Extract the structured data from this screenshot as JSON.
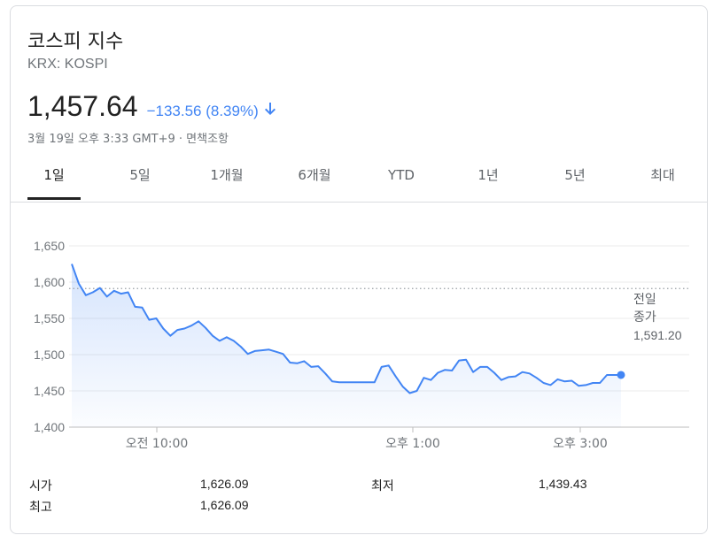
{
  "header": {
    "title": "코스피 지수",
    "subtitle": "KRX: KOSPI",
    "price": "1,457.64",
    "change": "−133.56 (8.39%)",
    "timestamp": "3월 19일 오후 3:33 GMT+9 · 면책조항"
  },
  "tabs": [
    {
      "label": "1일",
      "active": true
    },
    {
      "label": "5일"
    },
    {
      "label": "1개월"
    },
    {
      "label": "6개월"
    },
    {
      "label": "YTD"
    },
    {
      "label": "1년"
    },
    {
      "label": "5년"
    },
    {
      "label": "최대"
    }
  ],
  "colors": {
    "line": "#4285f4",
    "change": "#4285f4",
    "grid": "#ebebeb",
    "axis_text": "#70757a"
  },
  "chart_data": {
    "type": "area",
    "x_tick_labels": [
      "오전 10:00",
      "오후 1:00",
      "오후 3:00"
    ],
    "y_ticks": [
      1400,
      1450,
      1500,
      1550,
      1600,
      1650
    ],
    "y_tick_labels": [
      "1,400",
      "1,450",
      "1,500",
      "1,550",
      "1,600",
      "1,650"
    ],
    "ylim": [
      1400,
      1660
    ],
    "grid": true,
    "previous_close": {
      "label_line1": "전일",
      "label_line2": "종가",
      "value": 1591.2,
      "value_label": "1,591.20"
    },
    "series": [
      {
        "values": [
          1625,
          1598,
          1582,
          1586,
          1592,
          1580,
          1588,
          1584,
          1586,
          1566,
          1565,
          1548,
          1550,
          1536,
          1526,
          1534,
          1536,
          1540,
          1546,
          1537,
          1526,
          1519,
          1524,
          1519,
          1511,
          1501,
          1505,
          1506,
          1507,
          1504,
          1501,
          1489,
          1488,
          1491,
          1483,
          1484,
          1474,
          1463,
          1462,
          1462,
          1462,
          1462,
          1462,
          1462,
          1483,
          1485,
          1470,
          1456,
          1447,
          1450,
          1468,
          1465,
          1475,
          1479,
          1478,
          1492,
          1493,
          1476,
          1483,
          1483,
          1475,
          1465,
          1469,
          1470,
          1476,
          1474,
          1468,
          1461,
          1458,
          1466,
          1463,
          1464,
          1457,
          1458,
          1461,
          1461,
          1472,
          1472,
          1472
        ]
      }
    ]
  },
  "stats": {
    "open_label": "시가",
    "open_value": "1,626.09",
    "high_label": "최고",
    "high_value": "1,626.09",
    "low_label": "최저",
    "low_value": "1,439.43"
  }
}
